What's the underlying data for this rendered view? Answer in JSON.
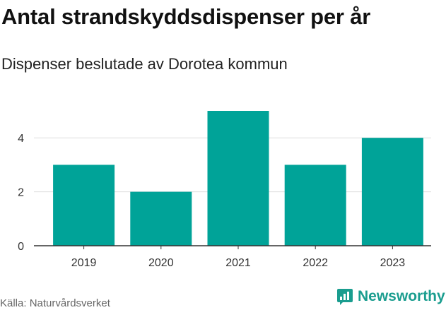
{
  "header": {
    "title": "Antal strandskyddsdispenser per år",
    "subtitle": "Dispenser beslutade av Dorotea kommun"
  },
  "footer": {
    "source": "Källa: Naturvårdsverket",
    "brand": "Newsworthy"
  },
  "colors": {
    "bar": "#00a398",
    "grid": "#dddddd",
    "axis": "#333333",
    "brand": "#1a9d8f"
  },
  "chart_data": {
    "type": "bar",
    "categories": [
      "2019",
      "2020",
      "2021",
      "2022",
      "2023"
    ],
    "values": [
      3,
      2,
      5,
      3,
      4
    ],
    "title": "Antal strandskyddsdispenser per år",
    "subtitle": "Dispenser beslutade av Dorotea kommun",
    "xlabel": "",
    "ylabel": "",
    "ylim": [
      0,
      5
    ],
    "yticks": [
      0,
      2,
      4
    ],
    "grid": true,
    "legend": "none"
  }
}
